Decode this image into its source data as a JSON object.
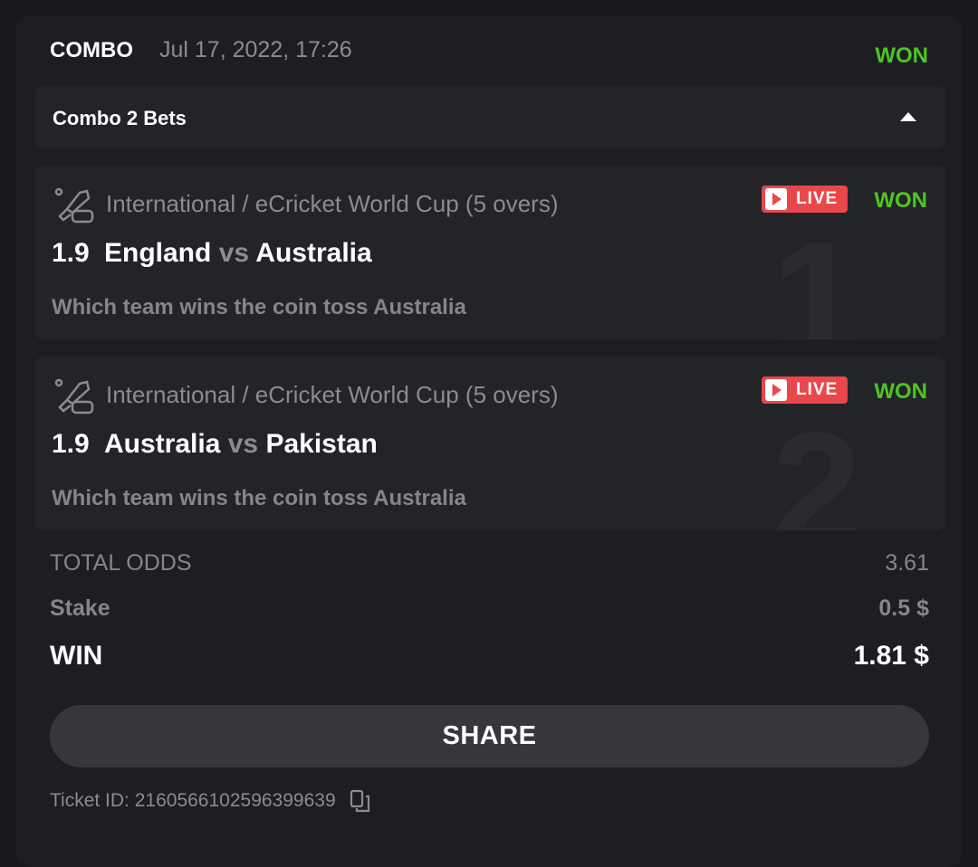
{
  "header": {
    "type": "COMBO",
    "date": "Jul 17, 2022, 17:26",
    "status": "WON"
  },
  "combo": {
    "label": "Combo 2 Bets",
    "expanded": true
  },
  "bets": [
    {
      "icon": "ecricket-icon",
      "league": "International / eCricket World Cup (5 overs)",
      "odds": "1.9",
      "home": "England",
      "vs": "vs",
      "away": "Australia",
      "market": "Which team wins the coin toss Australia",
      "live": "LIVE",
      "status": "WON",
      "index": "1"
    },
    {
      "icon": "ecricket-icon",
      "league": "International / eCricket World Cup (5 overs)",
      "odds": "1.9",
      "home": "Australia",
      "vs": "vs",
      "away": "Pakistan",
      "market": "Which team wins the coin toss Australia",
      "live": "LIVE",
      "status": "WON",
      "index": "2"
    }
  ],
  "summary": {
    "total_odds_label": "TOTAL ODDS",
    "total_odds": "3.61",
    "stake_label": "Stake",
    "stake": "0.5 $",
    "win_label": "WIN",
    "win": "1.81 $"
  },
  "share_label": "SHARE",
  "ticket": {
    "label": "Ticket ID: 2160566102596399639"
  },
  "colors": {
    "won": "#4fc522",
    "live": "#e9474c",
    "background": "#1d1e22"
  }
}
